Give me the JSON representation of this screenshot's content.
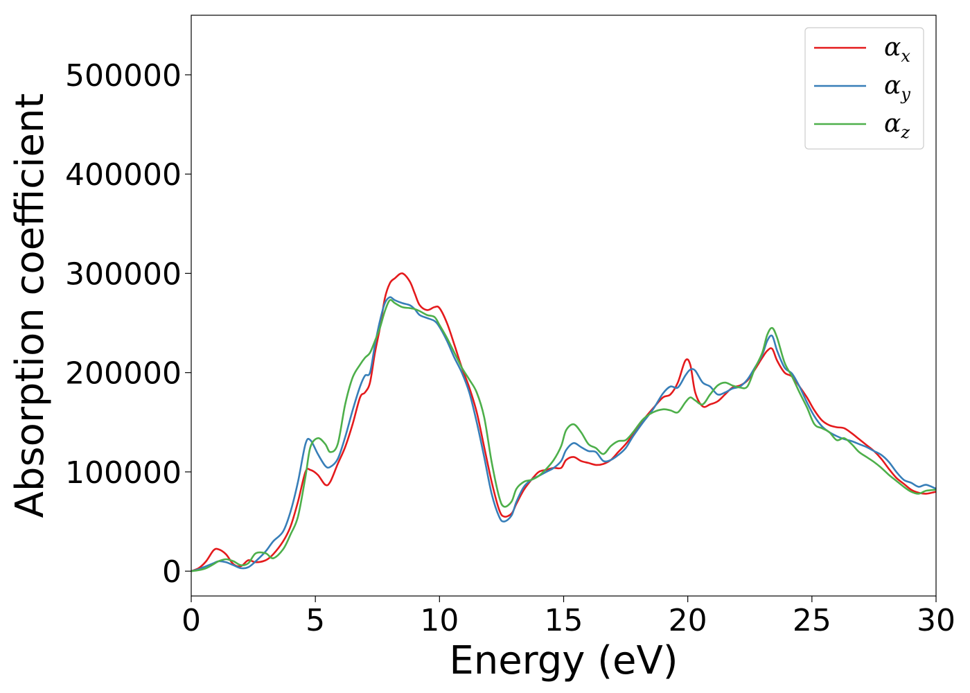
{
  "chart_data": {
    "type": "line",
    "title": "",
    "xlabel": "Energy (eV)",
    "ylabel": "Absorption coefficient",
    "xlim": [
      0,
      30
    ],
    "ylim": [
      -25000,
      560000
    ],
    "xticks": [
      "0",
      "5",
      "10",
      "15",
      "20",
      "25",
      "30"
    ],
    "yticks": [
      "0",
      "100000",
      "200000",
      "300000",
      "400000",
      "500000"
    ],
    "grid": false,
    "legend_position": "top-right",
    "legend": [
      {
        "symbol": "α",
        "sub": "x"
      },
      {
        "symbol": "α",
        "sub": "y"
      },
      {
        "symbol": "α",
        "sub": "z"
      }
    ],
    "series": [
      {
        "name": "αx",
        "color": "#e41a1c",
        "x": [
          0,
          0.3,
          0.6,
          0.9,
          1.1,
          1.4,
          1.7,
          2.0,
          2.3,
          2.6,
          3.0,
          3.3,
          3.7,
          4.0,
          4.3,
          4.6,
          4.8,
          5.1,
          5.4,
          5.6,
          5.9,
          6.2,
          6.5,
          6.8,
          7.0,
          7.2,
          7.4,
          7.6,
          7.8,
          8.0,
          8.2,
          8.5,
          8.8,
          9.0,
          9.2,
          9.5,
          9.8,
          10.0,
          10.3,
          10.6,
          10.9,
          11.2,
          11.5,
          11.8,
          12.1,
          12.4,
          12.6,
          12.9,
          13.1,
          13.4,
          13.7,
          14.0,
          14.3,
          14.6,
          14.9,
          15.1,
          15.4,
          15.7,
          16.0,
          16.3,
          16.6,
          16.9,
          17.2,
          17.5,
          17.8,
          18.2,
          18.6,
          19.0,
          19.3,
          19.6,
          19.9,
          20.1,
          20.3,
          20.6,
          20.9,
          21.2,
          21.5,
          21.8,
          22.1,
          22.4,
          22.7,
          23.0,
          23.2,
          23.4,
          23.6,
          23.9,
          24.2,
          24.5,
          24.8,
          25.1,
          25.4,
          25.7,
          26.0,
          26.3,
          26.6,
          26.9,
          27.2,
          27.5,
          27.8,
          28.1,
          28.4,
          28.7,
          29.0,
          29.3,
          29.6,
          30.0
        ],
        "values": [
          0,
          3000,
          10000,
          21000,
          22000,
          17000,
          7000,
          5000,
          11000,
          9000,
          11000,
          17000,
          30000,
          45000,
          70000,
          100000,
          102000,
          97000,
          87000,
          90000,
          108000,
          125000,
          148000,
          175000,
          180000,
          190000,
          220000,
          245000,
          275000,
          290000,
          295000,
          300000,
          292000,
          280000,
          268000,
          263000,
          266000,
          265000,
          250000,
          228000,
          205000,
          185000,
          160000,
          125000,
          90000,
          62000,
          55000,
          58000,
          68000,
          82000,
          92000,
          100000,
          102000,
          104000,
          104000,
          112000,
          115000,
          111000,
          109000,
          107000,
          108000,
          112000,
          120000,
          128000,
          138000,
          152000,
          164000,
          175000,
          178000,
          190000,
          212000,
          208000,
          180000,
          166000,
          168000,
          171000,
          178000,
          185000,
          187000,
          192000,
          203000,
          215000,
          222000,
          224000,
          212000,
          200000,
          196000,
          186000,
          175000,
          162000,
          152000,
          147000,
          145000,
          144000,
          139000,
          133000,
          127000,
          121000,
          113000,
          103000,
          94000,
          88000,
          82000,
          79000,
          78000,
          80000
        ]
      },
      {
        "name": "αy",
        "color": "#377eb8",
        "x": [
          0,
          0.3,
          0.6,
          0.9,
          1.1,
          1.4,
          1.7,
          2.0,
          2.3,
          2.6,
          3.0,
          3.3,
          3.7,
          4.0,
          4.3,
          4.6,
          4.8,
          5.1,
          5.4,
          5.6,
          5.9,
          6.2,
          6.5,
          6.8,
          7.0,
          7.2,
          7.4,
          7.6,
          7.8,
          8.0,
          8.2,
          8.5,
          8.8,
          9.0,
          9.2,
          9.5,
          9.8,
          10.0,
          10.3,
          10.6,
          10.9,
          11.2,
          11.5,
          11.8,
          12.1,
          12.4,
          12.6,
          12.9,
          13.1,
          13.4,
          13.7,
          14.0,
          14.3,
          14.6,
          14.9,
          15.1,
          15.4,
          15.7,
          16.0,
          16.3,
          16.6,
          16.9,
          17.2,
          17.5,
          17.8,
          18.2,
          18.6,
          19.0,
          19.3,
          19.6,
          19.9,
          20.1,
          20.3,
          20.6,
          20.9,
          21.2,
          21.5,
          21.8,
          22.1,
          22.4,
          22.7,
          23.0,
          23.2,
          23.4,
          23.6,
          23.9,
          24.2,
          24.5,
          24.8,
          25.1,
          25.4,
          25.7,
          26.0,
          26.3,
          26.6,
          26.9,
          27.2,
          27.5,
          27.8,
          28.1,
          28.4,
          28.7,
          29.0,
          29.3,
          29.6,
          30.0
        ],
        "values": [
          0,
          2000,
          5000,
          8000,
          10000,
          9000,
          6000,
          3000,
          4000,
          10000,
          20000,
          30000,
          40000,
          60000,
          90000,
          128000,
          132000,
          118000,
          106000,
          105000,
          113000,
          135000,
          162000,
          186000,
          197000,
          200000,
          228000,
          252000,
          270000,
          276000,
          273000,
          270000,
          268000,
          264000,
          258000,
          255000,
          252000,
          246000,
          232000,
          215000,
          200000,
          180000,
          150000,
          115000,
          78000,
          55000,
          50000,
          56000,
          70000,
          85000,
          92000,
          96000,
          100000,
          104000,
          111000,
          122000,
          129000,
          125000,
          121000,
          120000,
          111000,
          112000,
          117000,
          124000,
          136000,
          150000,
          163000,
          179000,
          186000,
          185000,
          197000,
          203000,
          202000,
          190000,
          186000,
          178000,
          180000,
          184000,
          186000,
          193000,
          205000,
          218000,
          232000,
          237000,
          222000,
          205000,
          199000,
          186000,
          170000,
          156000,
          146000,
          140000,
          136000,
          133000,
          131000,
          128000,
          125000,
          121000,
          117000,
          110000,
          100000,
          92000,
          89000,
          85000,
          87000,
          83000
        ]
      },
      {
        "name": "αz",
        "color": "#4daf4a",
        "x": [
          0,
          0.3,
          0.6,
          0.9,
          1.1,
          1.4,
          1.7,
          2.0,
          2.3,
          2.6,
          3.0,
          3.3,
          3.7,
          4.0,
          4.3,
          4.6,
          4.8,
          5.1,
          5.4,
          5.6,
          5.9,
          6.2,
          6.5,
          6.8,
          7.0,
          7.2,
          7.4,
          7.6,
          7.8,
          8.0,
          8.2,
          8.5,
          8.8,
          9.0,
          9.2,
          9.5,
          9.8,
          10.0,
          10.3,
          10.6,
          10.9,
          11.2,
          11.5,
          11.8,
          12.1,
          12.4,
          12.6,
          12.9,
          13.1,
          13.4,
          13.7,
          14.0,
          14.3,
          14.6,
          14.9,
          15.1,
          15.4,
          15.7,
          16.0,
          16.3,
          16.6,
          16.9,
          17.2,
          17.5,
          17.8,
          18.2,
          18.6,
          19.0,
          19.3,
          19.6,
          19.9,
          20.1,
          20.3,
          20.6,
          20.9,
          21.2,
          21.5,
          21.8,
          22.1,
          22.4,
          22.7,
          23.0,
          23.2,
          23.4,
          23.6,
          23.9,
          24.2,
          24.5,
          24.8,
          25.1,
          25.4,
          25.7,
          26.0,
          26.3,
          26.6,
          26.9,
          27.2,
          27.5,
          27.8,
          28.1,
          28.4,
          28.7,
          29.0,
          29.3,
          29.6,
          30.0
        ],
        "values": [
          0,
          1000,
          3000,
          7000,
          10000,
          12000,
          10000,
          6000,
          8000,
          18000,
          18000,
          13000,
          22000,
          37000,
          55000,
          95000,
          125000,
          134000,
          128000,
          120000,
          128000,
          168000,
          195000,
          208000,
          215000,
          220000,
          232000,
          245000,
          262000,
          273000,
          270000,
          266000,
          265000,
          264000,
          262000,
          258000,
          256000,
          248000,
          235000,
          220000,
          205000,
          193000,
          180000,
          155000,
          110000,
          75000,
          65000,
          70000,
          83000,
          90000,
          92000,
          96000,
          103000,
          112000,
          126000,
          142000,
          148000,
          140000,
          128000,
          124000,
          118000,
          126000,
          131000,
          132000,
          140000,
          153000,
          160000,
          163000,
          162000,
          160000,
          170000,
          175000,
          172000,
          168000,
          178000,
          187000,
          190000,
          187000,
          185000,
          186000,
          204000,
          220000,
          238000,
          245000,
          235000,
          210000,
          196000,
          180000,
          165000,
          148000,
          144000,
          140000,
          132000,
          134000,
          128000,
          120000,
          115000,
          110000,
          104000,
          97000,
          91000,
          85000,
          80000,
          78000,
          81000,
          82000
        ]
      }
    ]
  }
}
